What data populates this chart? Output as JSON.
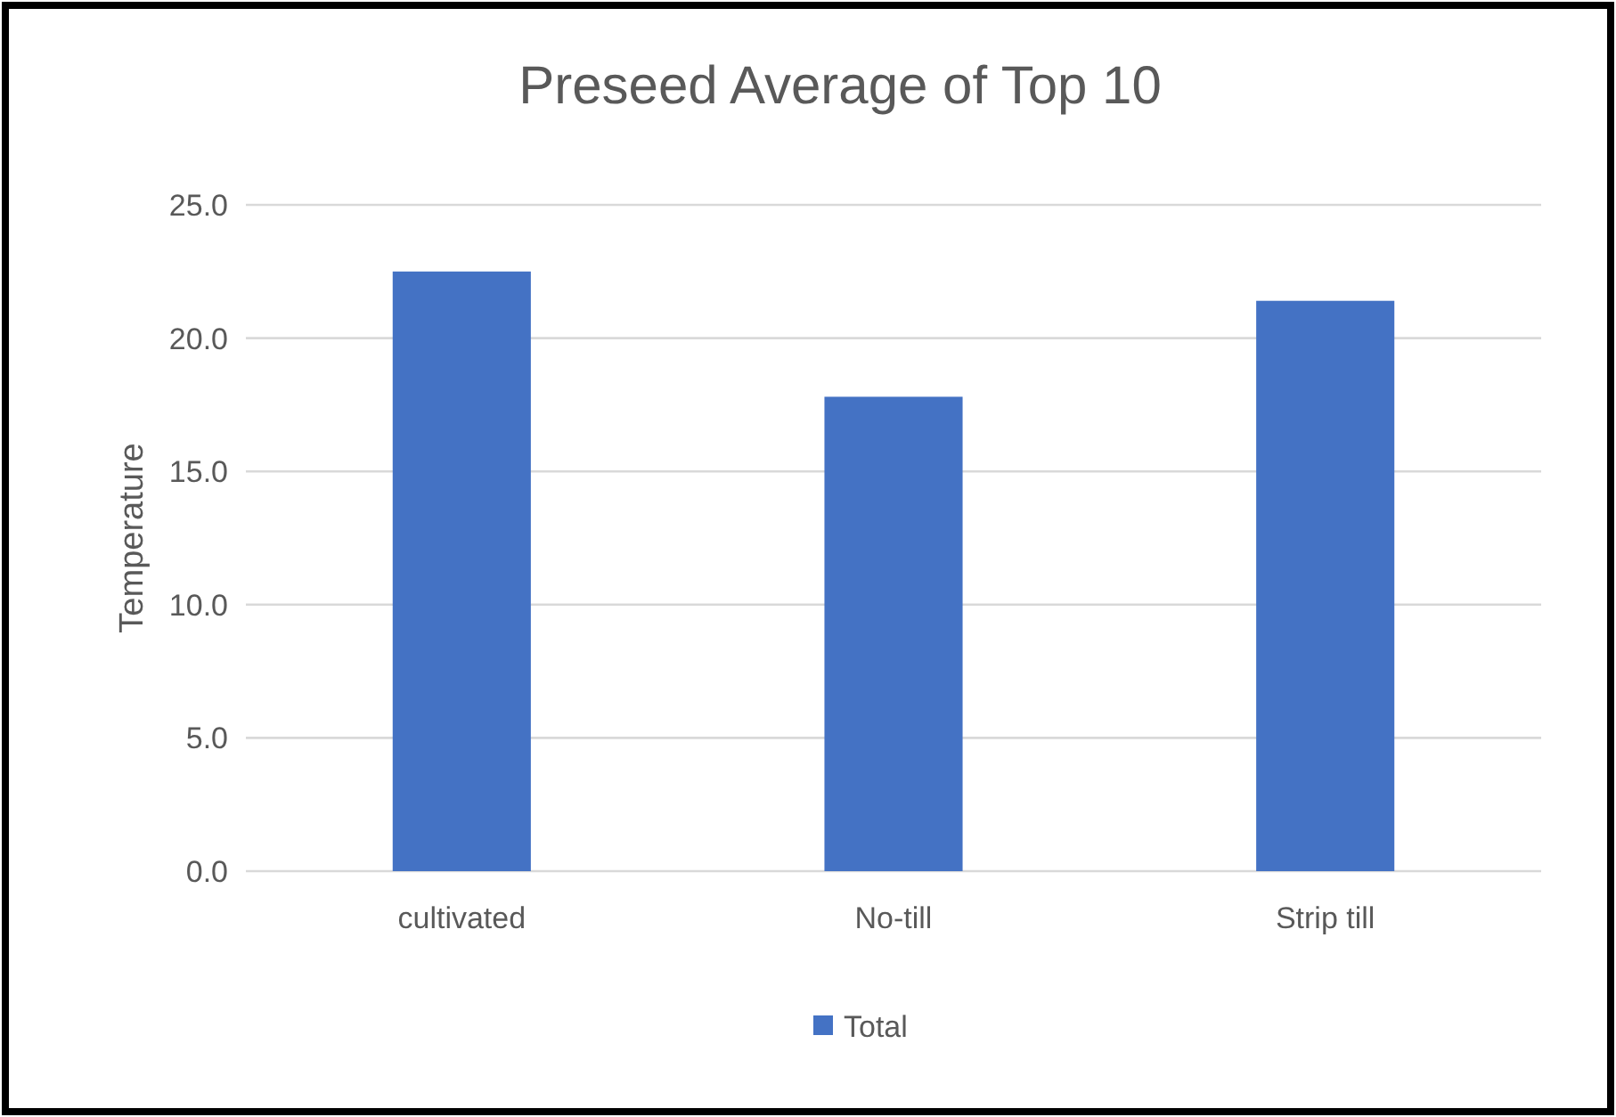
{
  "chart_data": {
    "type": "bar",
    "title": "Preseed Average of Top 10",
    "ylabel": "Temperature",
    "categories": [
      "cultivated",
      "No-till",
      "Strip till"
    ],
    "series": [
      {
        "name": "Total",
        "color": "#4472c4",
        "values": [
          22.5,
          17.8,
          21.4
        ]
      }
    ],
    "ylim": [
      0,
      25
    ],
    "yticks": [
      {
        "value": 0,
        "label": "0.0"
      },
      {
        "value": 5,
        "label": "5.0"
      },
      {
        "value": 10,
        "label": "10.0"
      },
      {
        "value": 15,
        "label": "15.0"
      },
      {
        "value": 20,
        "label": "20.0"
      },
      {
        "value": 25,
        "label": "25.0"
      }
    ],
    "grid": "y",
    "legend": "bottom"
  }
}
